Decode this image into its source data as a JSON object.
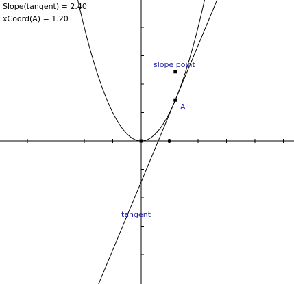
{
  "readouts": {
    "slope_label": "Slope(tangent)",
    "slope_value": "2.40",
    "xcoord_label": "xCoord(A)",
    "xcoord_value": "1.20"
  },
  "labels": {
    "slope_point": "slope point",
    "point_a": "A",
    "tangent": "tangent"
  },
  "sketch": {
    "a_x": 1.2,
    "curve": "y = x^2",
    "x_range": [
      -4.9,
      5.0
    ],
    "y_range": [
      -5.0,
      4.9
    ],
    "tick_step": 1
  },
  "colors": {
    "axis": "#000000",
    "curve": "#000000",
    "label": "#1a1aa6",
    "text": "#000000"
  }
}
